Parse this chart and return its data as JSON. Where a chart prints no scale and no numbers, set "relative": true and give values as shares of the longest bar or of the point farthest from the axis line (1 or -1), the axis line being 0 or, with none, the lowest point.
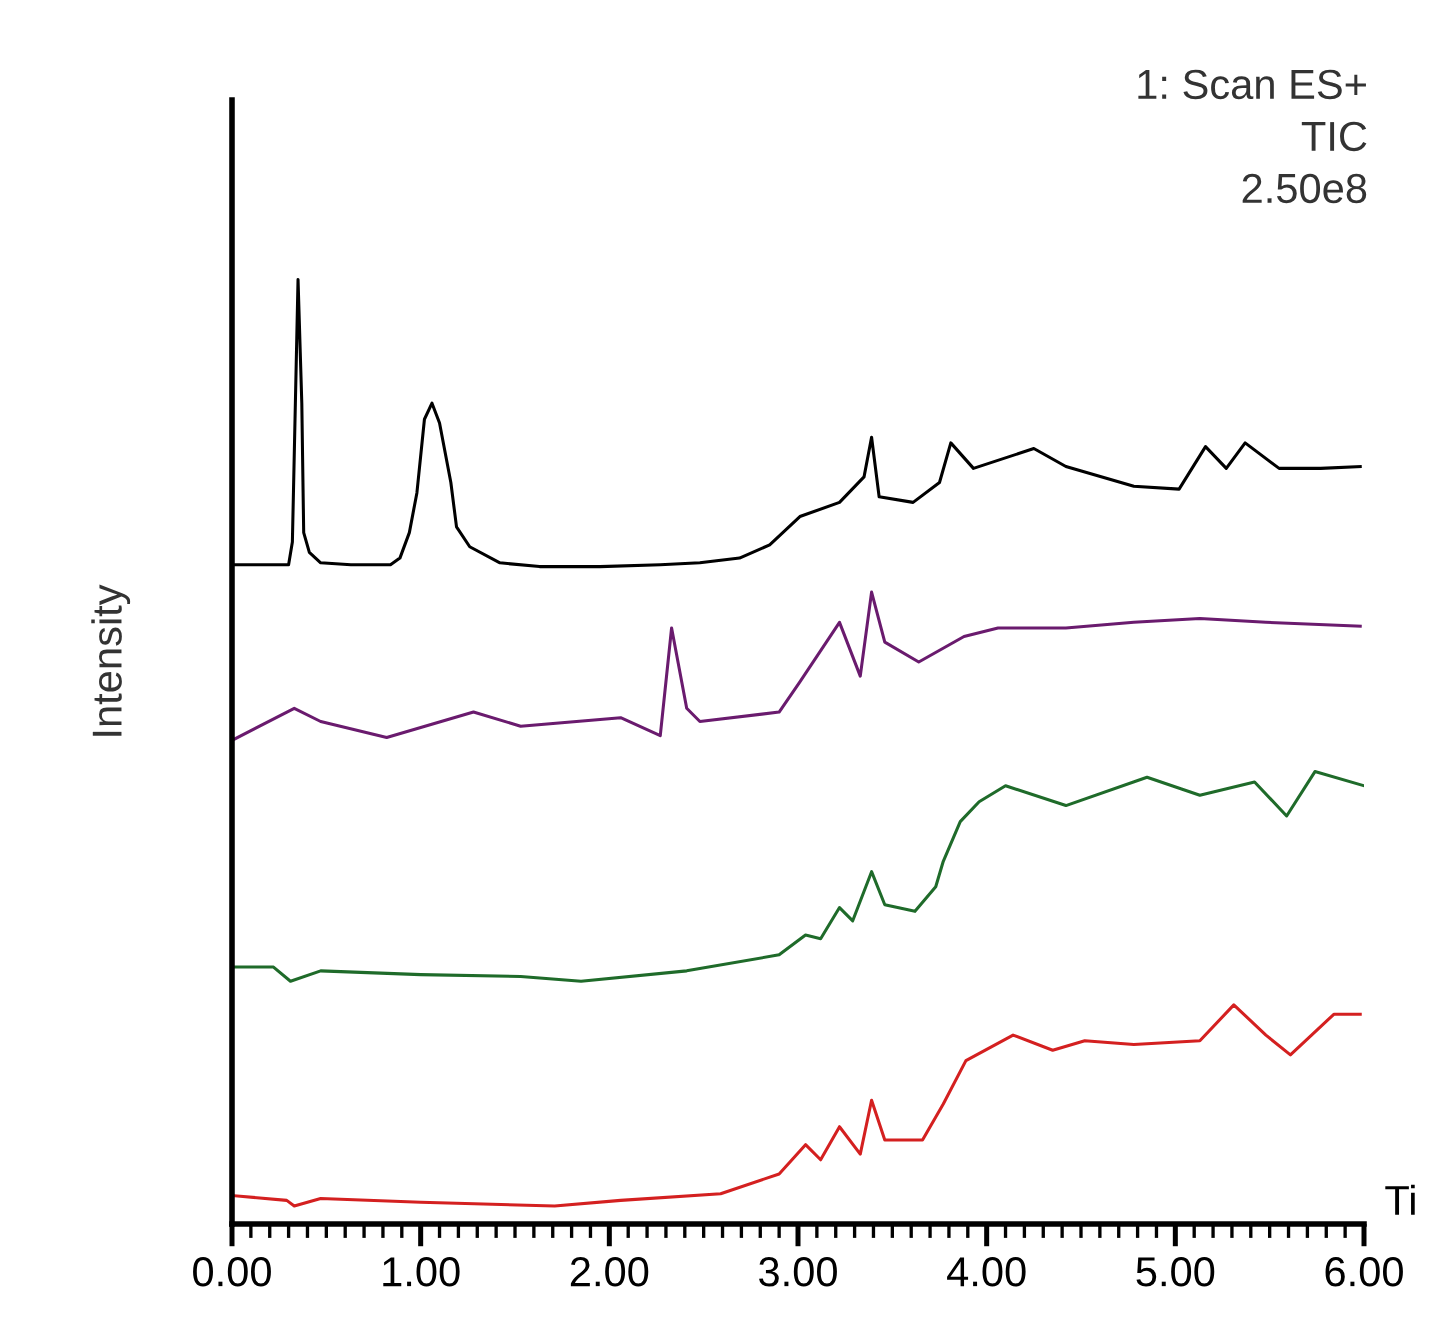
{
  "chart_data": {
    "type": "line",
    "relative": true,
    "xlabel": "Ti",
    "ylabel": "Intensity",
    "annotations": [
      "1: Scan ES+",
      "TIC",
      "2.50e8"
    ],
    "xlim": [
      0,
      6
    ],
    "xticks": [
      {
        "value": 0,
        "label": "0.00"
      },
      {
        "value": 1,
        "label": "1.00"
      },
      {
        "value": 2,
        "label": "2.00"
      },
      {
        "value": 3,
        "label": "3.00"
      },
      {
        "value": 4,
        "label": "4.00"
      },
      {
        "value": 5,
        "label": "5.00"
      },
      {
        "value": 6,
        "label": "6.00"
      }
    ],
    "tick_labels": "x",
    "grid": false,
    "legend": false,
    "series": [
      {
        "color": "#000000",
        "x": [
          0.01,
          0.25,
          0.3,
          0.32,
          0.35,
          0.37,
          0.38,
          0.41,
          0.47,
          0.63,
          0.84,
          0.89,
          0.94,
          0.98,
          1.02,
          1.06,
          1.1,
          1.16,
          1.19,
          1.26,
          1.42,
          1.63,
          1.95,
          2.27,
          2.48,
          2.69,
          2.85,
          3.01,
          3.22,
          3.35,
          3.39,
          3.43,
          3.61,
          3.75,
          3.81,
          3.93,
          4.25,
          4.42,
          4.78,
          5.02,
          5.16,
          5.27,
          5.37,
          5.55,
          5.77,
          5.98
        ],
        "values": [
          0.698,
          0.698,
          0.698,
          0.722,
          1.0,
          0.869,
          0.732,
          0.711,
          0.7,
          0.698,
          0.698,
          0.705,
          0.732,
          0.774,
          0.852,
          0.869,
          0.848,
          0.785,
          0.738,
          0.717,
          0.7,
          0.696,
          0.696,
          0.698,
          0.7,
          0.705,
          0.719,
          0.749,
          0.764,
          0.791,
          0.833,
          0.77,
          0.764,
          0.785,
          0.827,
          0.8,
          0.821,
          0.802,
          0.781,
          0.778,
          0.823,
          0.8,
          0.827,
          0.8,
          0.8,
          0.802
        ]
      },
      {
        "color": "#6a1b6e",
        "x": [
          0.01,
          0.33,
          0.47,
          0.82,
          1.28,
          1.53,
          2.06,
          2.27,
          2.33,
          2.41,
          2.48,
          2.9,
          3.01,
          3.22,
          3.33,
          3.39,
          3.46,
          3.64,
          3.88,
          4.06,
          4.42,
          4.78,
          5.13,
          5.48,
          5.98
        ],
        "values": [
          0.513,
          0.546,
          0.532,
          0.515,
          0.542,
          0.527,
          0.536,
          0.517,
          0.631,
          0.546,
          0.532,
          0.542,
          0.574,
          0.637,
          0.58,
          0.669,
          0.616,
          0.595,
          0.622,
          0.631,
          0.631,
          0.637,
          0.641,
          0.637,
          0.633
        ]
      },
      {
        "color": "#1f6b2a",
        "x": [
          0.01,
          0.22,
          0.31,
          0.47,
          1.0,
          1.53,
          1.85,
          2.41,
          2.9,
          3.04,
          3.12,
          3.22,
          3.29,
          3.39,
          3.46,
          3.62,
          3.73,
          3.77,
          3.86,
          3.96,
          4.1,
          4.42,
          4.85,
          5.13,
          5.42,
          5.59,
          5.74,
          6.0
        ],
        "values": [
          0.272,
          0.272,
          0.257,
          0.268,
          0.264,
          0.262,
          0.257,
          0.268,
          0.285,
          0.306,
          0.302,
          0.335,
          0.321,
          0.373,
          0.338,
          0.331,
          0.357,
          0.384,
          0.426,
          0.447,
          0.464,
          0.443,
          0.473,
          0.454,
          0.468,
          0.432,
          0.479,
          0.464
        ]
      },
      {
        "color": "#d42020",
        "x": [
          0.01,
          0.29,
          0.33,
          0.47,
          1.0,
          1.71,
          2.06,
          2.59,
          2.9,
          3.04,
          3.12,
          3.22,
          3.33,
          3.39,
          3.46,
          3.66,
          3.77,
          3.89,
          4.14,
          4.35,
          4.52,
          4.78,
          5.13,
          5.31,
          5.48,
          5.61,
          5.84,
          5.98
        ],
        "values": [
          0.03,
          0.025,
          0.019,
          0.027,
          0.023,
          0.019,
          0.025,
          0.032,
          0.053,
          0.084,
          0.068,
          0.103,
          0.074,
          0.131,
          0.089,
          0.089,
          0.127,
          0.173,
          0.2,
          0.184,
          0.194,
          0.19,
          0.194,
          0.232,
          0.2,
          0.179,
          0.222,
          0.222
        ]
      }
    ]
  }
}
